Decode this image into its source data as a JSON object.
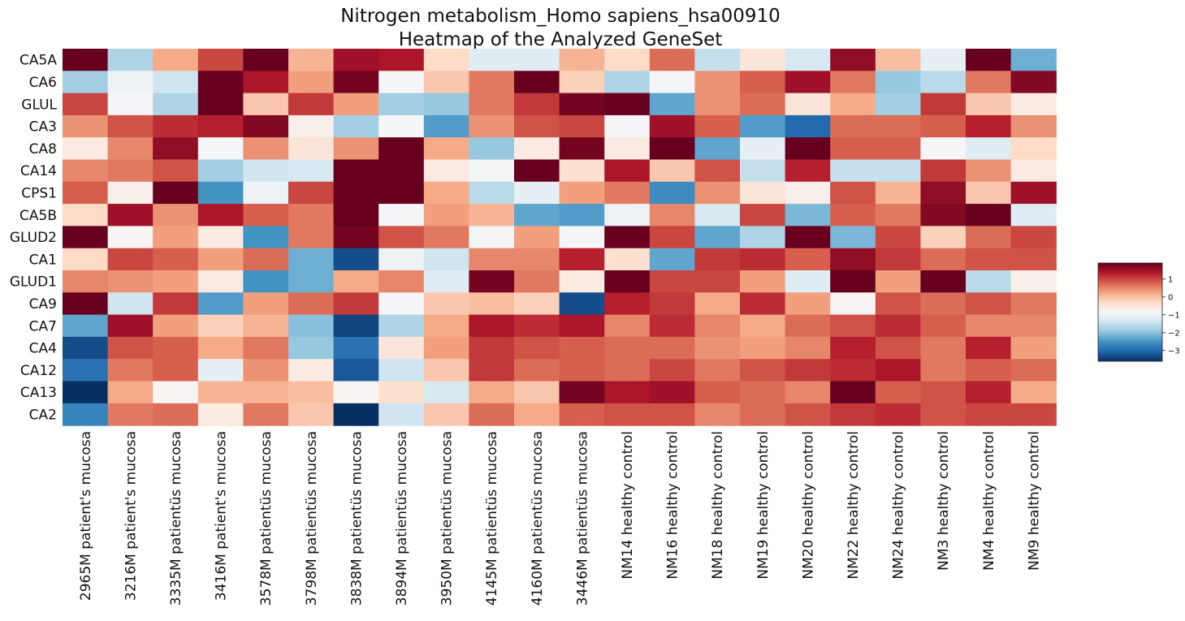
{
  "chart_data": {
    "type": "heatmap",
    "title": [
      "Nitrogen metabolism_Homo sapiens_hsa00910",
      "Heatmap of the Analyzed GeneSet"
    ],
    "rows": [
      "CA5A",
      "CA6",
      "GLUL",
      "CA3",
      "CA8",
      "CA14",
      "CPS1",
      "CA5B",
      "GLUD2",
      "CA1",
      "GLUD1",
      "CA9",
      "CA7",
      "CA4",
      "CA12",
      "CA13",
      "CA2"
    ],
    "columns": [
      "2965M patient's mucosa",
      "3216M patient's mucosa",
      "3335M patientüs mucosa",
      "3416M patient's mucosa",
      "3578M patientüs mucosa",
      "3798M patientüs mucosa",
      "3838M patientüs mucosa",
      "3894M patientüs mucosa",
      "3950M patientüs mucosa",
      "4145M patientüs mucosa",
      "4160M patientüs mucosa",
      "3446M patientüs mucosa",
      "NM14 healthy control",
      "NM16 healthy control",
      "NM18 healthy control",
      "NM19 healthy control",
      "NM20 healthy control",
      "NM22 healthy control",
      "NM24 healthy control",
      "NM3 healthy control",
      "NM4 healthy control",
      "NM9 healthy control"
    ],
    "values": [
      [
        2.2,
        -1.7,
        0.2,
        1.0,
        2.3,
        0.1,
        1.5,
        1.4,
        -0.3,
        -1.2,
        -1.2,
        0.1,
        -0.3,
        0.7,
        -1.5,
        -0.5,
        -1.3,
        1.6,
        0.0,
        -1.1,
        1.9,
        -2.2
      ],
      [
        -1.8,
        -1.0,
        -1.4,
        1.9,
        1.4,
        0.3,
        1.8,
        -0.9,
        -0.1,
        0.6,
        1.9,
        -0.2,
        -1.7,
        -0.9,
        0.4,
        0.8,
        1.5,
        0.6,
        -1.9,
        -1.6,
        0.6,
        1.7
      ],
      [
        1.0,
        -0.9,
        -1.7,
        2.3,
        -0.1,
        1.1,
        0.3,
        -1.8,
        -1.9,
        0.6,
        1.1,
        1.8,
        2.2,
        -2.3,
        0.4,
        0.7,
        -0.5,
        0.2,
        -1.8,
        1.1,
        -0.1,
        -0.6
      ],
      [
        0.4,
        0.9,
        1.2,
        1.3,
        1.7,
        -0.7,
        -1.8,
        -0.9,
        -2.4,
        0.4,
        0.9,
        1.0,
        -0.9,
        1.5,
        0.8,
        -2.4,
        -3.0,
        0.7,
        0.7,
        0.8,
        1.3,
        0.4
      ],
      [
        -0.6,
        0.5,
        1.6,
        -0.9,
        0.4,
        -0.5,
        0.4,
        2.3,
        0.2,
        -1.9,
        -0.6,
        1.8,
        -0.6,
        2.1,
        -2.3,
        -1.1,
        2.3,
        0.8,
        0.8,
        -0.9,
        -1.2,
        -0.3
      ],
      [
        0.5,
        0.6,
        0.9,
        -1.8,
        -1.4,
        -1.3,
        2.0,
        2.3,
        -0.6,
        -0.9,
        2.0,
        -0.4,
        1.4,
        -0.1,
        0.9,
        -1.5,
        1.3,
        -1.5,
        -1.5,
        1.1,
        0.4,
        -0.6
      ],
      [
        0.8,
        -0.7,
        1.9,
        -2.5,
        -1.0,
        1.0,
        2.4,
        2.0,
        0.2,
        -1.6,
        -1.1,
        0.3,
        0.6,
        -2.6,
        0.4,
        -0.5,
        -0.7,
        0.9,
        0.1,
        1.6,
        -0.1,
        1.5
      ],
      [
        -0.3,
        1.5,
        0.4,
        1.4,
        0.8,
        0.6,
        2.1,
        -0.9,
        0.3,
        0.1,
        -2.3,
        -2.4,
        -1.0,
        0.5,
        -1.3,
        1.0,
        -2.1,
        0.8,
        0.6,
        1.7,
        2.4,
        -1.2
      ],
      [
        1.9,
        -0.8,
        0.3,
        -0.6,
        -2.5,
        0.6,
        1.8,
        0.9,
        0.6,
        -0.9,
        0.3,
        -0.9,
        2.1,
        1.0,
        -2.3,
        -1.7,
        1.9,
        -2.1,
        1.0,
        -0.2,
        0.7,
        1.0
      ],
      [
        -0.3,
        1.0,
        0.8,
        0.3,
        0.7,
        -2.2,
        -3.3,
        -1.0,
        -1.4,
        0.5,
        0.5,
        1.3,
        -0.4,
        -2.3,
        1.1,
        1.2,
        0.8,
        1.6,
        1.1,
        0.7,
        0.9,
        0.9
      ],
      [
        0.5,
        0.4,
        0.3,
        -0.6,
        -2.5,
        -2.2,
        0.2,
        0.5,
        -1.2,
        1.8,
        0.6,
        -0.6,
        2.5,
        1.0,
        1.0,
        0.3,
        -1.2,
        2.0,
        0.3,
        2.1,
        -1.6,
        -0.7
      ],
      [
        2.5,
        -1.4,
        1.1,
        -2.4,
        0.3,
        0.7,
        1.1,
        -0.9,
        -0.1,
        0.0,
        -0.2,
        -3.3,
        1.3,
        1.1,
        0.2,
        1.2,
        0.3,
        -0.8,
        0.9,
        0.7,
        0.9,
        0.6
      ],
      [
        -2.3,
        1.5,
        0.3,
        -0.2,
        0.1,
        -2.0,
        -3.4,
        -1.7,
        0.2,
        1.4,
        1.2,
        1.4,
        0.5,
        1.2,
        0.5,
        0.2,
        0.7,
        0.9,
        1.2,
        0.8,
        0.5,
        0.5
      ],
      [
        -3.3,
        0.9,
        0.8,
        0.2,
        0.6,
        -1.9,
        -2.9,
        -0.5,
        0.3,
        1.1,
        0.9,
        0.8,
        0.7,
        0.7,
        0.4,
        0.3,
        0.5,
        1.3,
        0.9,
        0.6,
        1.3,
        0.3
      ],
      [
        -2.9,
        0.6,
        0.8,
        -1.1,
        0.4,
        -0.6,
        -3.2,
        -1.4,
        -0.1,
        1.1,
        0.7,
        0.8,
        0.7,
        1.0,
        0.6,
        0.9,
        1.1,
        1.2,
        1.4,
        0.6,
        0.8,
        0.7
      ],
      [
        -4.0,
        0.2,
        -0.8,
        0.1,
        0.1,
        0.0,
        -0.8,
        -0.4,
        -1.3,
        0.2,
        -0.1,
        1.8,
        1.4,
        1.5,
        0.8,
        0.7,
        0.5,
        1.9,
        0.8,
        0.9,
        1.3,
        0.2
      ],
      [
        -2.7,
        0.6,
        0.7,
        -0.6,
        0.6,
        -0.1,
        -3.8,
        -1.4,
        -0.1,
        0.7,
        0.2,
        0.8,
        0.9,
        0.9,
        0.5,
        0.7,
        0.9,
        1.1,
        1.2,
        0.9,
        1.0,
        1.0
      ]
    ],
    "colorbar": {
      "ticks": [
        1,
        0,
        -1,
        -2,
        -3
      ],
      "tick_labels": [
        "1",
        "0",
        "−1",
        "−2",
        "−3"
      ],
      "vmin": -3.6,
      "vmax": 1.9,
      "colormap": "RdBu_r"
    },
    "xlabel": "",
    "ylabel": ""
  }
}
